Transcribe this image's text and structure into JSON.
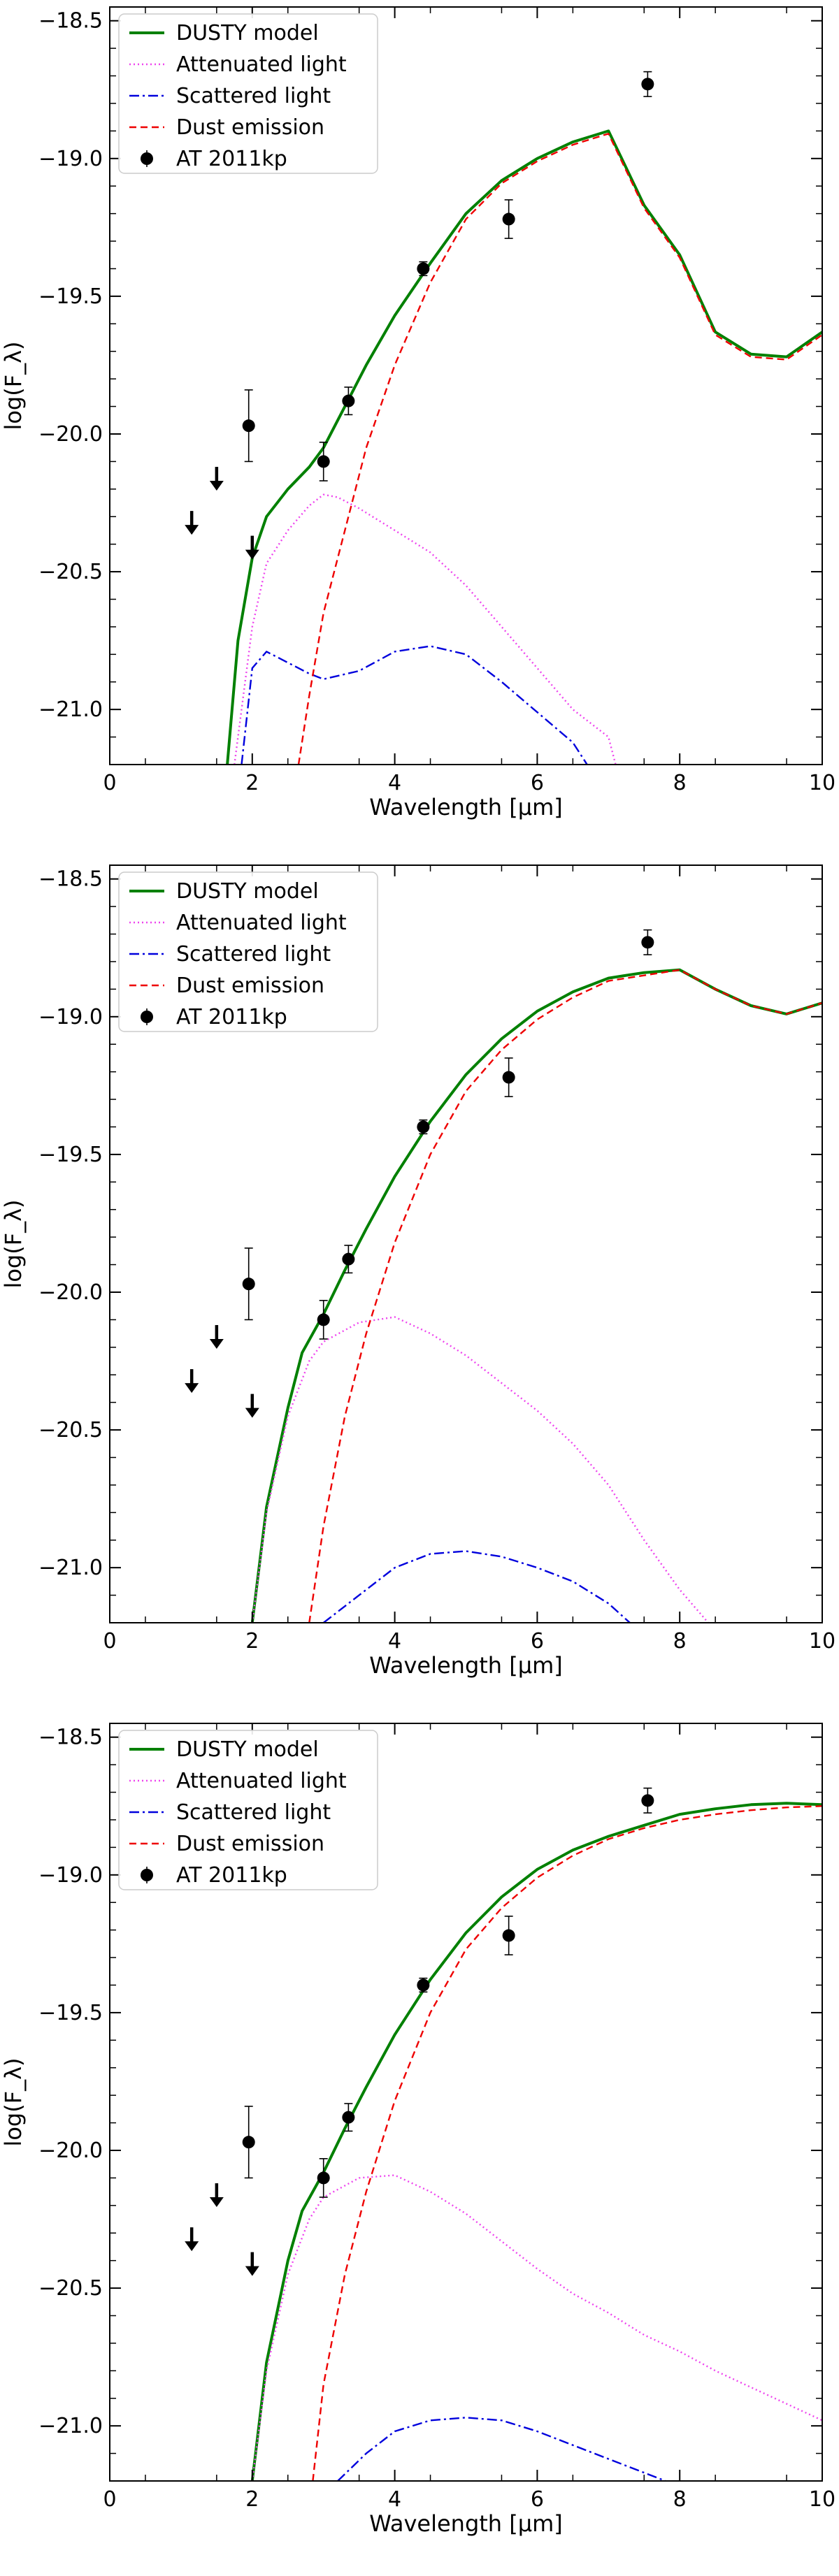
{
  "chart_data": [
    {
      "type": "line",
      "xlabel": "Wavelength [μm]",
      "ylabel": "log(F_λ)",
      "xlim": [
        0,
        10
      ],
      "ylim": [
        -21.2,
        -18.45
      ],
      "xticks": [
        "0",
        "2",
        "4",
        "6",
        "8",
        "10"
      ],
      "yticks": [
        "-18.5",
        "-19.0",
        "-19.5",
        "-20.0",
        "-20.5",
        "-21.0"
      ],
      "legend": {
        "position": "top-left",
        "entries": [
          "DUSTY model",
          "Attenuated light",
          "Scattered light",
          "Dust emission",
          "AT 2011kp"
        ]
      },
      "series": [
        {
          "name": "DUSTY model",
          "style": "solid",
          "color": "#008000",
          "x": [
            1.65,
            1.8,
            2.0,
            2.2,
            2.5,
            2.8,
            3.0,
            3.3,
            3.6,
            4.0,
            4.5,
            5.0,
            5.5,
            6.0,
            6.5,
            7.0,
            7.5,
            8.0,
            8.5,
            9.0,
            9.5,
            10.0
          ],
          "y": [
            -21.2,
            -20.75,
            -20.45,
            -20.3,
            -20.2,
            -20.12,
            -20.05,
            -19.9,
            -19.75,
            -19.57,
            -19.38,
            -19.2,
            -19.08,
            -19.0,
            -18.94,
            -18.9,
            -19.17,
            -19.35,
            -19.63,
            -19.71,
            -19.72,
            -19.63
          ]
        },
        {
          "name": "Attenuated light",
          "style": "dotted",
          "color": "#ee44ee",
          "x": [
            1.75,
            2.0,
            2.2,
            2.5,
            2.8,
            3.0,
            3.2,
            3.5,
            4.0,
            4.5,
            5.0,
            5.5,
            6.0,
            6.5,
            7.0,
            7.1
          ],
          "y": [
            -21.2,
            -20.7,
            -20.47,
            -20.35,
            -20.26,
            -20.22,
            -20.23,
            -20.27,
            -20.35,
            -20.43,
            -20.55,
            -20.7,
            -20.85,
            -21.0,
            -21.1,
            -21.2
          ]
        },
        {
          "name": "Scattered light",
          "style": "dashdot",
          "color": "#0000dd",
          "x": [
            1.85,
            2.0,
            2.2,
            2.5,
            2.8,
            3.0,
            3.5,
            4.0,
            4.5,
            5.0,
            5.5,
            6.0,
            6.5,
            6.7
          ],
          "y": [
            -21.2,
            -20.85,
            -20.79,
            -20.83,
            -20.87,
            -20.89,
            -20.86,
            -20.79,
            -20.77,
            -20.8,
            -20.9,
            -21.01,
            -21.12,
            -21.2
          ]
        },
        {
          "name": "Dust emission",
          "style": "dashed",
          "color": "#ee0000",
          "x": [
            2.65,
            2.8,
            3.0,
            3.3,
            3.6,
            4.0,
            4.5,
            5.0,
            5.5,
            6.0,
            6.5,
            7.0,
            7.5,
            8.0,
            8.5,
            9.0,
            9.5,
            10.0
          ],
          "y": [
            -21.2,
            -20.95,
            -20.65,
            -20.35,
            -20.05,
            -19.75,
            -19.45,
            -19.22,
            -19.09,
            -19.01,
            -18.95,
            -18.91,
            -19.18,
            -19.36,
            -19.64,
            -19.72,
            -19.73,
            -19.64
          ]
        }
      ],
      "observations": {
        "name": "AT 2011kp",
        "points": [
          {
            "x": 1.95,
            "y": -19.97,
            "yerr": 0.13
          },
          {
            "x": 3.0,
            "y": -20.1,
            "yerr": 0.07
          },
          {
            "x": 3.35,
            "y": -19.88,
            "yerr": 0.05
          },
          {
            "x": 4.4,
            "y": -19.4,
            "yerr": 0.025
          },
          {
            "x": 5.6,
            "y": -19.22,
            "yerr": 0.07
          },
          {
            "x": 7.55,
            "y": -18.73,
            "yerr": 0.045
          }
        ],
        "upper_limits": [
          {
            "x": 1.15,
            "y": -20.32
          },
          {
            "x": 1.5,
            "y": -20.16
          },
          {
            "x": 2.0,
            "y": -20.41
          }
        ]
      }
    },
    {
      "type": "line",
      "xlabel": "Wavelength [μm]",
      "ylabel": "log(F_λ)",
      "xlim": [
        0,
        10
      ],
      "ylim": [
        -21.2,
        -18.45
      ],
      "xticks": [
        "0",
        "2",
        "4",
        "6",
        "8",
        "10"
      ],
      "yticks": [
        "-18.5",
        "-19.0",
        "-19.5",
        "-20.0",
        "-20.5",
        "-21.0"
      ],
      "legend": {
        "position": "top-left",
        "entries": [
          "DUSTY model",
          "Attenuated light",
          "Scattered light",
          "Dust emission",
          "AT 2011kp"
        ]
      },
      "series": [
        {
          "name": "DUSTY model",
          "style": "solid",
          "color": "#008000",
          "x": [
            2.0,
            2.2,
            2.5,
            2.7,
            3.0,
            3.3,
            3.6,
            4.0,
            4.5,
            5.0,
            5.5,
            6.0,
            6.5,
            7.0,
            7.5,
            8.0,
            8.5,
            9.0,
            9.5,
            10.0
          ],
          "y": [
            -21.2,
            -20.78,
            -20.42,
            -20.22,
            -20.08,
            -19.92,
            -19.77,
            -19.58,
            -19.38,
            -19.21,
            -19.08,
            -18.98,
            -18.91,
            -18.86,
            -18.84,
            -18.83,
            -18.9,
            -18.96,
            -18.99,
            -18.95
          ]
        },
        {
          "name": "Attenuated light",
          "style": "dotted",
          "color": "#ee44ee",
          "x": [
            2.0,
            2.2,
            2.5,
            2.8,
            3.0,
            3.5,
            4.0,
            4.5,
            5.0,
            5.5,
            6.0,
            6.5,
            7.0,
            7.5,
            8.0,
            8.4
          ],
          "y": [
            -21.2,
            -20.8,
            -20.45,
            -20.25,
            -20.18,
            -20.11,
            -20.09,
            -20.15,
            -20.23,
            -20.33,
            -20.43,
            -20.55,
            -20.7,
            -20.9,
            -21.08,
            -21.2
          ]
        },
        {
          "name": "Scattered light",
          "style": "dashdot",
          "color": "#0000dd",
          "x": [
            3.0,
            3.5,
            4.0,
            4.5,
            5.0,
            5.5,
            6.0,
            6.5,
            7.0,
            7.3
          ],
          "y": [
            -21.2,
            -21.1,
            -21.0,
            -20.95,
            -20.94,
            -20.96,
            -21.0,
            -21.05,
            -21.13,
            -21.2
          ]
        },
        {
          "name": "Dust emission",
          "style": "dashed",
          "color": "#ee0000",
          "x": [
            2.8,
            3.0,
            3.3,
            3.6,
            4.0,
            4.5,
            5.0,
            5.5,
            6.0,
            6.5,
            7.0,
            7.5,
            8.0,
            8.5,
            9.0,
            9.5,
            10.0
          ],
          "y": [
            -21.2,
            -20.85,
            -20.45,
            -20.15,
            -19.82,
            -19.5,
            -19.27,
            -19.12,
            -19.01,
            -18.93,
            -18.87,
            -18.85,
            -18.83,
            -18.9,
            -18.96,
            -18.99,
            -18.95
          ]
        }
      ],
      "observations": {
        "name": "AT 2011kp",
        "points": [
          {
            "x": 1.95,
            "y": -19.97,
            "yerr": 0.13
          },
          {
            "x": 3.0,
            "y": -20.1,
            "yerr": 0.07
          },
          {
            "x": 3.35,
            "y": -19.88,
            "yerr": 0.05
          },
          {
            "x": 4.4,
            "y": -19.4,
            "yerr": 0.025
          },
          {
            "x": 5.6,
            "y": -19.22,
            "yerr": 0.07
          },
          {
            "x": 7.55,
            "y": -18.73,
            "yerr": 0.045
          }
        ],
        "upper_limits": [
          {
            "x": 1.15,
            "y": -20.32
          },
          {
            "x": 1.5,
            "y": -20.16
          },
          {
            "x": 2.0,
            "y": -20.41
          }
        ]
      }
    },
    {
      "type": "line",
      "xlabel": "Wavelength [μm]",
      "ylabel": "log(F_λ)",
      "xlim": [
        0,
        10
      ],
      "ylim": [
        -21.2,
        -18.45
      ],
      "xticks": [
        "0",
        "2",
        "4",
        "6",
        "8",
        "10"
      ],
      "yticks": [
        "-18.5",
        "-19.0",
        "-19.5",
        "-20.0",
        "-20.5",
        "-21.0"
      ],
      "legend": {
        "position": "top-left",
        "entries": [
          "DUSTY model",
          "Attenuated light",
          "Scattered light",
          "Dust emission",
          "AT 2011kp"
        ]
      },
      "series": [
        {
          "name": "DUSTY model",
          "style": "solid",
          "color": "#008000",
          "x": [
            2.0,
            2.2,
            2.5,
            2.7,
            3.0,
            3.3,
            3.6,
            4.0,
            4.5,
            5.0,
            5.5,
            6.0,
            6.5,
            7.0,
            7.5,
            8.0,
            8.5,
            9.0,
            9.5,
            10.0
          ],
          "y": [
            -21.2,
            -20.77,
            -20.4,
            -20.22,
            -20.08,
            -19.92,
            -19.77,
            -19.58,
            -19.38,
            -19.21,
            -19.08,
            -18.98,
            -18.91,
            -18.86,
            -18.82,
            -18.78,
            -18.76,
            -18.745,
            -18.74,
            -18.745
          ]
        },
        {
          "name": "Attenuated light",
          "style": "dotted",
          "color": "#ee44ee",
          "x": [
            2.0,
            2.2,
            2.5,
            2.8,
            3.0,
            3.5,
            4.0,
            4.5,
            5.0,
            5.5,
            6.0,
            6.5,
            7.0,
            7.5,
            8.0,
            8.5,
            9.0,
            9.5,
            10.0
          ],
          "y": [
            -21.2,
            -20.8,
            -20.45,
            -20.25,
            -20.17,
            -20.1,
            -20.09,
            -20.15,
            -20.23,
            -20.33,
            -20.43,
            -20.52,
            -20.59,
            -20.67,
            -20.73,
            -20.8,
            -20.86,
            -20.92,
            -20.98
          ]
        },
        {
          "name": "Scattered light",
          "style": "dashdot",
          "color": "#0000dd",
          "x": [
            3.2,
            3.6,
            4.0,
            4.5,
            5.0,
            5.5,
            6.0,
            6.5,
            7.0,
            7.5,
            7.8
          ],
          "y": [
            -21.2,
            -21.1,
            -21.02,
            -20.98,
            -20.97,
            -20.98,
            -21.02,
            -21.07,
            -21.12,
            -21.17,
            -21.2
          ]
        },
        {
          "name": "Dust emission",
          "style": "dashed",
          "color": "#ee0000",
          "x": [
            2.85,
            3.0,
            3.3,
            3.6,
            4.0,
            4.5,
            5.0,
            5.5,
            6.0,
            6.5,
            7.0,
            7.5,
            8.0,
            8.5,
            9.0,
            9.5,
            10.0
          ],
          "y": [
            -21.2,
            -20.85,
            -20.45,
            -20.15,
            -19.82,
            -19.5,
            -19.27,
            -19.12,
            -19.01,
            -18.93,
            -18.87,
            -18.83,
            -18.8,
            -18.78,
            -18.765,
            -18.755,
            -18.75
          ]
        }
      ],
      "observations": {
        "name": "AT 2011kp",
        "points": [
          {
            "x": 1.95,
            "y": -19.97,
            "yerr": 0.13
          },
          {
            "x": 3.0,
            "y": -20.1,
            "yerr": 0.07
          },
          {
            "x": 3.35,
            "y": -19.88,
            "yerr": 0.05
          },
          {
            "x": 4.4,
            "y": -19.4,
            "yerr": 0.025
          },
          {
            "x": 5.6,
            "y": -19.22,
            "yerr": 0.07
          },
          {
            "x": 7.55,
            "y": -18.73,
            "yerr": 0.045
          }
        ],
        "upper_limits": [
          {
            "x": 1.15,
            "y": -20.32
          },
          {
            "x": 1.5,
            "y": -20.16
          },
          {
            "x": 2.0,
            "y": -20.41
          }
        ]
      }
    }
  ]
}
